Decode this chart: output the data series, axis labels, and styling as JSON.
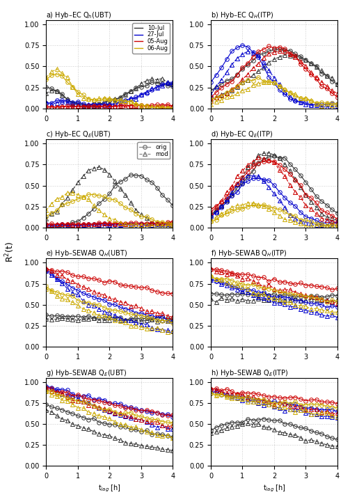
{
  "colors": {
    "black": "#333333",
    "blue": "#0000cc",
    "red": "#cc0000",
    "yellow": "#ccaa00"
  },
  "day_colors": [
    "#333333",
    "#0000cc",
    "#cc0000",
    "#ccaa00"
  ],
  "day_labels": [
    "10-Jul",
    "27-Jul",
    "05-Aug",
    "06-Aug"
  ],
  "t_max": 4.0,
  "n_pts": 25,
  "subplot_titles": [
    "a) Hyb–EC Q$_h$(UBT)",
    "b) Hyb–EC Q$_H$(ITP)",
    "c) Hyb–EC Q$_E$(UBT)",
    "d) Hyb–EC Q$_E$(ITP)",
    "e) Hyb–SEWAB Q$_H$(UBT)",
    "f) Hyb–SEWAB Q$_H$(ITP)",
    "g) Hyb–SEWAB Q$_E$(UBT)",
    "h) Hyb–SEWAB Q$_E$(ITP)"
  ],
  "ylabel": "R$^2$(t)",
  "xlabel": "t$_{lag}$ [h]",
  "background_color": "#ffffff",
  "grid_color": "#cccccc"
}
